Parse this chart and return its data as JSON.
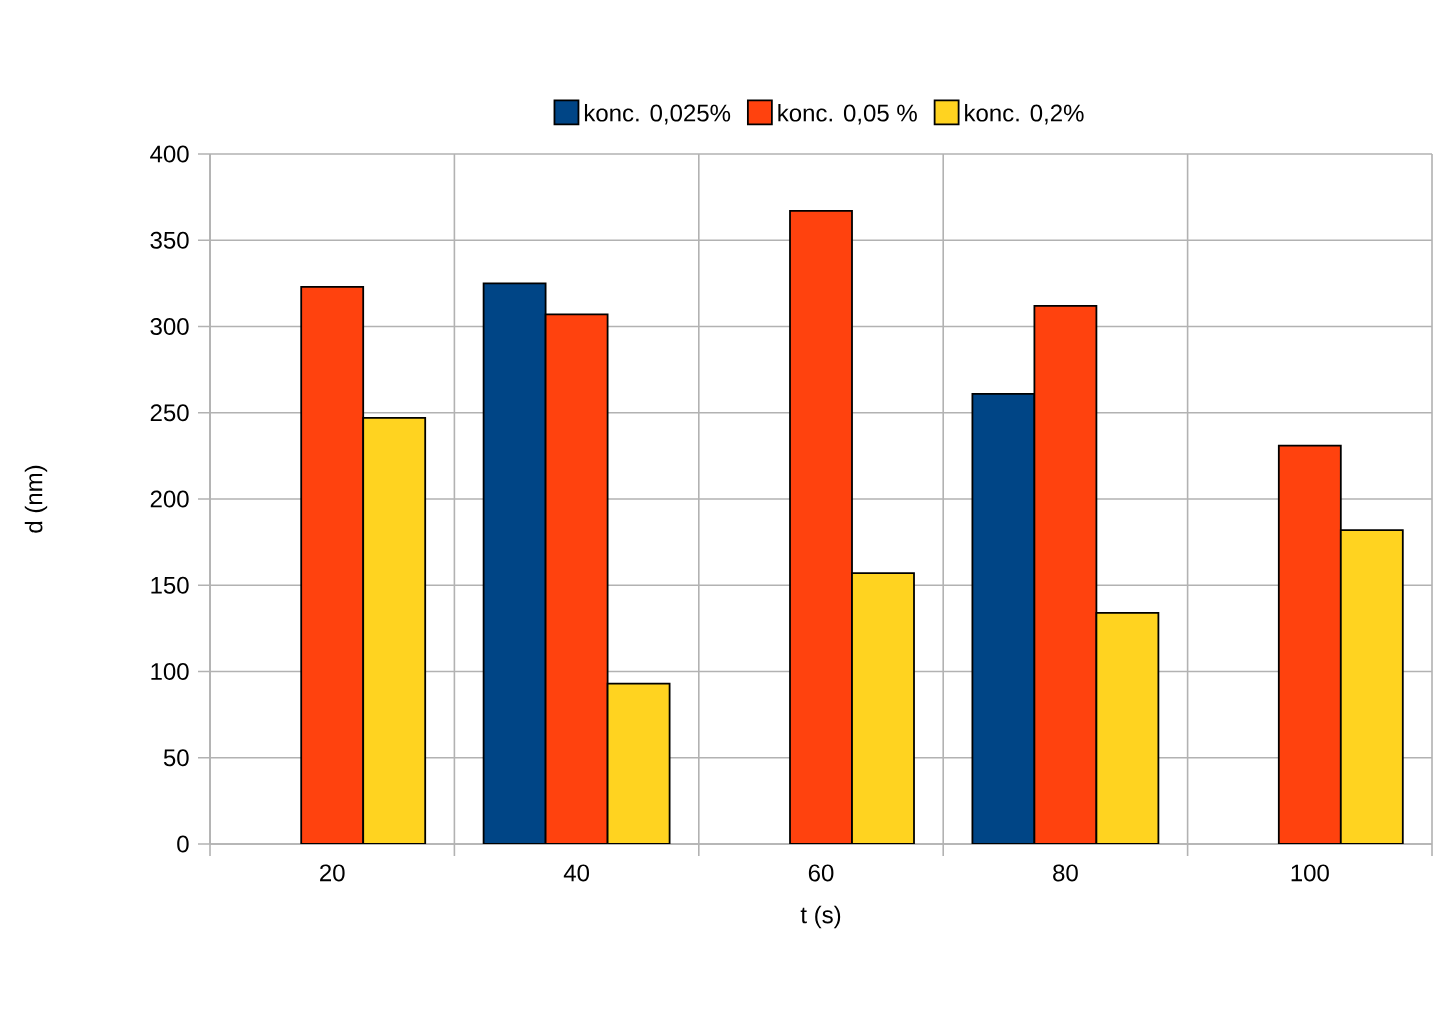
{
  "chart_data": {
    "type": "bar",
    "xlabel": "t (s)",
    "ylabel": "d (nm)",
    "categories": [
      "20",
      "40",
      "60",
      "80",
      "100"
    ],
    "series": [
      {
        "name": "konc. 0,025%",
        "color": "#004586",
        "values": [
          null,
          325,
          null,
          261,
          null
        ]
      },
      {
        "name": "konc. 0,05 %",
        "color": "#ff420e",
        "values": [
          323,
          307,
          367,
          312,
          231
        ]
      },
      {
        "name": "konc. 0,2%",
        "color": "#ffd320",
        "values": [
          247,
          93,
          157,
          134,
          182
        ]
      }
    ],
    "ylim": [
      0,
      400
    ],
    "yticks": [
      0,
      50,
      100,
      150,
      200,
      250,
      300,
      350,
      400
    ],
    "grid": true,
    "legend": "top"
  }
}
